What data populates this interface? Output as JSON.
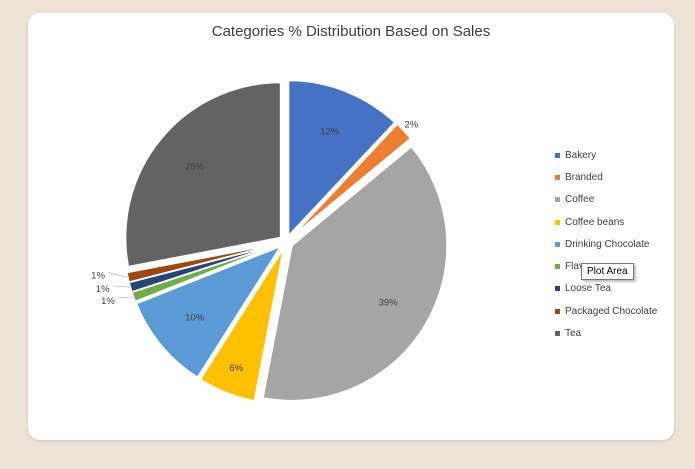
{
  "chart_data": {
    "type": "pie",
    "title": "Categories % Distribution  Based on Sales",
    "categories": [
      "Bakery",
      "Branded",
      "Coffee",
      "Coffee beans",
      "Drinking Chocolate",
      "Flavours",
      "Loose Tea",
      "Packaged Chocolate",
      "Tea"
    ],
    "values": [
      12,
      2,
      39,
      6,
      10,
      1,
      1,
      1,
      28
    ],
    "labels": [
      "12%",
      "2%",
      "39%",
      "6%",
      "10%",
      "1%",
      "1%",
      "1%",
      "28%"
    ],
    "colors": [
      "#4472c4",
      "#ed7d31",
      "#a5a5a5",
      "#ffc000",
      "#5b9bd5",
      "#70ad47",
      "#264478",
      "#9e480e",
      "#636363"
    ],
    "legend_position": "right",
    "exploded": true
  },
  "tooltip": {
    "text": "Plot Area"
  }
}
